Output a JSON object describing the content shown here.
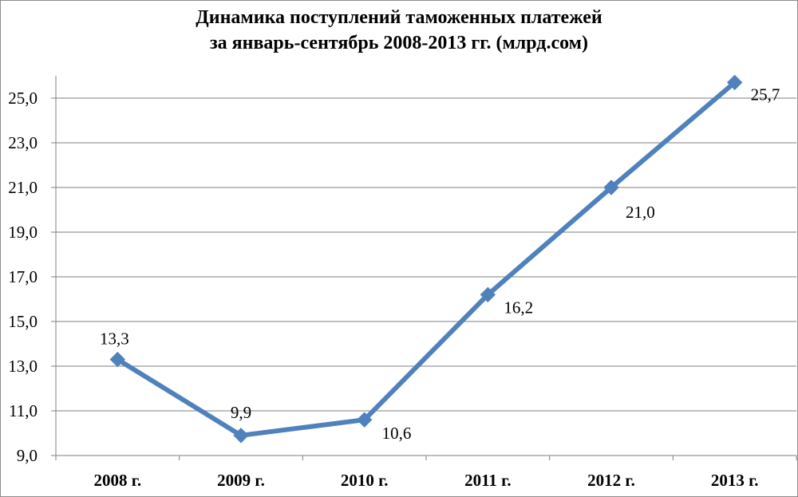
{
  "chart_data": {
    "type": "line",
    "title_lines": [
      "Динамика поступлений таможенных платежей",
      "за январь-сентябрь  2008-2013 гг. (млрд.сом)"
    ],
    "categories": [
      "2008 г.",
      "2009 г.",
      "2010 г.",
      "2011 г.",
      "2012 г.",
      "2013 г."
    ],
    "series": [
      {
        "values": [
          13.3,
          9.9,
          10.6,
          16.2,
          21.0,
          25.7
        ],
        "data_labels": [
          "13,3",
          "9,9",
          "10,6",
          "16,2",
          "21,0",
          "25,7"
        ]
      }
    ],
    "y_ticks": [
      9.0,
      11.0,
      13.0,
      15.0,
      17.0,
      19.0,
      21.0,
      23.0,
      25.0
    ],
    "y_tick_labels": [
      "9,0",
      "11,0",
      "13,0",
      "15,0",
      "17,0",
      "19,0",
      "21,0",
      "23,0",
      "25,0"
    ],
    "ylim": [
      9.0,
      26.0
    ],
    "grid": true,
    "marker": "diamond",
    "colors": {
      "line": "#4f81bd",
      "grid": "#7f7f7f",
      "axis": "#7f7f7f",
      "text": "#000000"
    }
  }
}
